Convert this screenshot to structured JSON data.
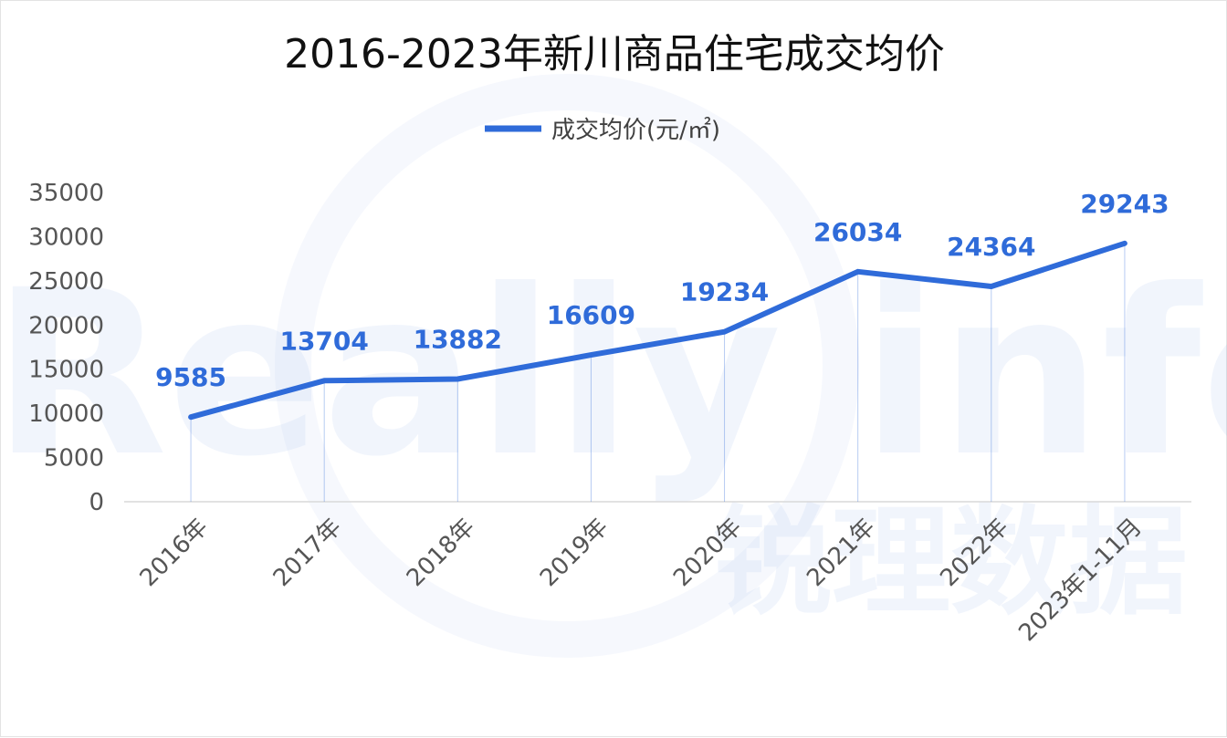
{
  "chart_data": {
    "type": "line",
    "title": "2016-2023年新川商品住宅成交均价",
    "categories": [
      "2016年",
      "2017年",
      "2018年",
      "2019年",
      "2020年",
      "2021年",
      "2022年",
      "2023年1-11月"
    ],
    "series": [
      {
        "name": "成交均价(元/㎡)",
        "values": [
          9585,
          13704,
          13882,
          16609,
          19234,
          26034,
          24364,
          29243
        ],
        "data_labels": [
          "9585",
          "13704",
          "13882",
          "16609",
          "19234",
          "26034",
          "24364",
          "29243"
        ]
      }
    ],
    "y_ticks": [
      "0",
      "5000",
      "10000",
      "15000",
      "20000",
      "25000",
      "30000",
      "35000"
    ],
    "ylim": [
      0,
      35000
    ],
    "legend_position": "top-center",
    "grid": false,
    "colors": {
      "line": "#2f6bd9",
      "data_label": "#2f6bd9"
    }
  },
  "watermark": {
    "latin_text": "Really info",
    "cjk_text": "锐理数据"
  }
}
